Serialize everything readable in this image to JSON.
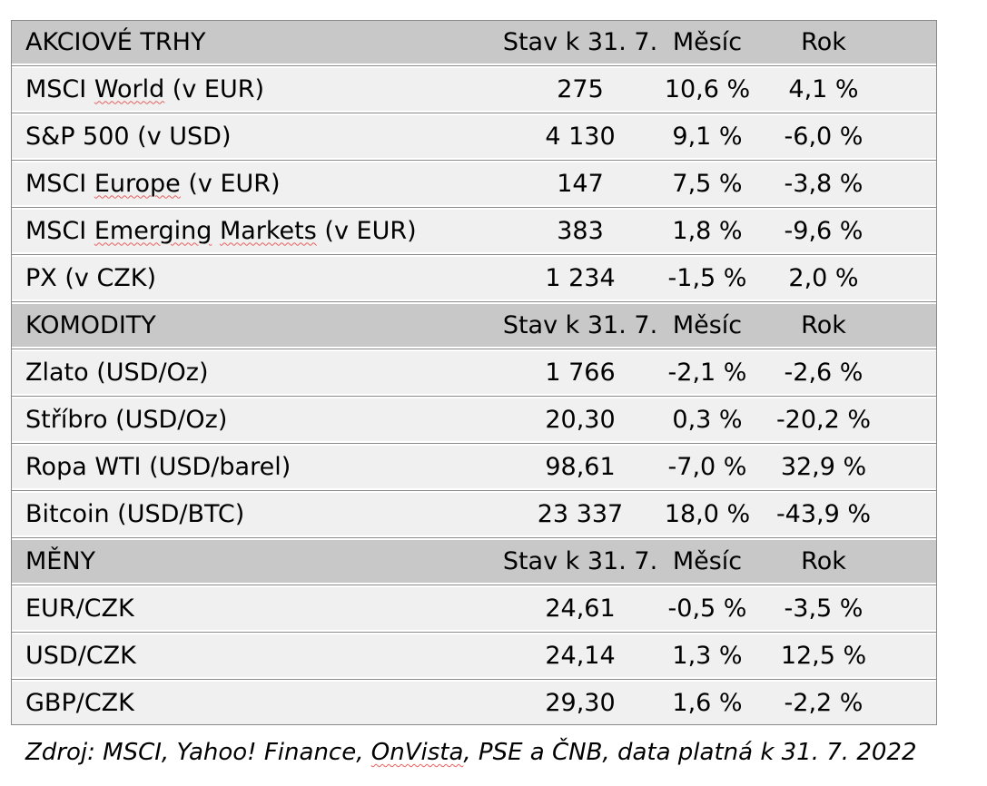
{
  "table": {
    "columns": {
      "col2": "Stav k 31. 7.",
      "col3": "Měsíc",
      "col4": "Rok"
    },
    "sections": [
      {
        "title": "AKCIOVÉ TRHY",
        "rows": [
          {
            "p1": "MSCI ",
            "sq1": "World",
            "p2": " (v EUR)",
            "value": "275",
            "month": "10,6 %",
            "year": "4,1 %"
          },
          {
            "p1": "S&P 500 (v USD)",
            "value": "4 130",
            "month": "9,1 %",
            "year": "-6,0 %"
          },
          {
            "p1": "MSCI ",
            "sq1": "Europe",
            "p2": " (v EUR)",
            "value": "147",
            "month": "7,5 %",
            "year": "-3,8 %"
          },
          {
            "p1": "MSCI ",
            "sq1": "Emerging",
            "p2": " ",
            "sq2": "Markets",
            "p3": " (v EUR)",
            "value": "383",
            "month": "1,8 %",
            "year": "-9,6 %"
          },
          {
            "p1": "PX (v CZK)",
            "value": "1 234",
            "month": "-1,5 %",
            "year": "2,0 %"
          }
        ]
      },
      {
        "title": "KOMODITY",
        "rows": [
          {
            "p1": "Zlato (USD/Oz)",
            "value": "1 766",
            "month": "-2,1 %",
            "year": "-2,6 %"
          },
          {
            "p1": "Stříbro (USD/Oz)",
            "value": "20,30",
            "month": "0,3 %",
            "year": "-20,2 %"
          },
          {
            "p1": "Ropa WTI (USD/barel)",
            "value": "98,61",
            "month": "-7,0 %",
            "year": "32,9 %"
          },
          {
            "p1": "Bitcoin (USD/BTC)",
            "value": "23 337",
            "month": "18,0 %",
            "year": "-43,9 %"
          }
        ]
      },
      {
        "title": "MĚNY",
        "rows": [
          {
            "p1": "EUR/CZK",
            "value": "24,61",
            "month": "-0,5 %",
            "year": "-3,5 %"
          },
          {
            "p1": "USD/CZK",
            "value": "24,14",
            "month": "1,3 %",
            "year": "12,5 %"
          },
          {
            "p1": "GBP/CZK",
            "value": "29,30",
            "month": "1,6 %",
            "year": "-2,2 %"
          }
        ]
      }
    ]
  },
  "footer": {
    "pre": "Zdroj: MSCI, Yahoo! Finance, ",
    "sq": "OnVista",
    "post": ", PSE a ČNB, data platná k 31. 7. 2022"
  },
  "colors": {
    "header_bg": "#c8c8c8",
    "row_bg": "#f0f0f0",
    "border": "#8a8a8a",
    "spellcheck_underline": "#e85f5f",
    "text": "#000000"
  }
}
